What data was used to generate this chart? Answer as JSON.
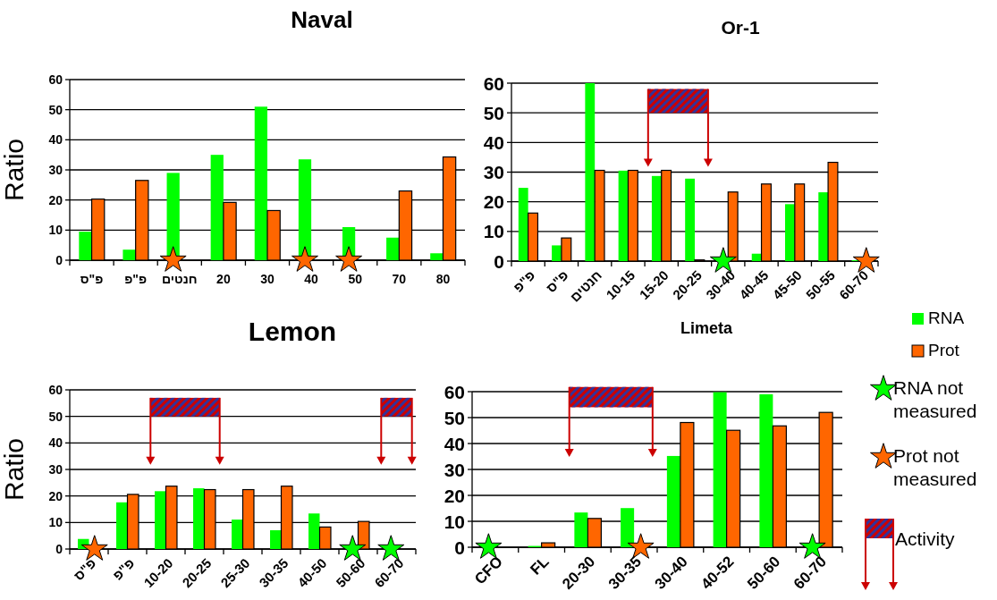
{
  "chart_data": [
    {
      "type": "bar",
      "title": "Naval",
      "ylabel": "Ratio",
      "categories": [
        "פ\"ס",
        "פ\"פ",
        "חנטים",
        "20",
        "30",
        "40",
        "50",
        "70",
        "80"
      ],
      "ylim": [
        0,
        60
      ],
      "yticks": [
        0,
        10,
        20,
        30,
        40,
        50,
        60
      ],
      "grid": "y",
      "series": [
        {
          "color": "#00ff00",
          "values": [
            9.5,
            3.5,
            29,
            35,
            51,
            33.5,
            11,
            7.5,
            2.3
          ]
        },
        {
          "color": "#ff6600",
          "values": [
            20.3,
            26.5,
            null,
            19.2,
            16.5,
            null,
            null,
            23,
            34.3
          ]
        },
        {
          "type": "scatter",
          "marker": "star",
          "color": "#ff6600",
          "x": [
            "חנטים",
            "40",
            "50"
          ],
          "values": [
            0,
            0,
            0
          ]
        }
      ]
    },
    {
      "type": "bar",
      "title": "Or-1",
      "categories": [
        "פ\"פ",
        "פ\"ס",
        "חנטים",
        "10-15",
        "15-20",
        "20-25",
        "30-40",
        "40-45",
        "45-50",
        "50-55",
        "60-70"
      ],
      "ylim": [
        0,
        60
      ],
      "yticks": [
        0,
        10,
        20,
        30,
        40,
        50,
        60
      ],
      "grid": "y",
      "series": [
        {
          "color": "#00ff00",
          "values": [
            24.7,
            5.3,
            60,
            30.5,
            28.7,
            27.8,
            null,
            2.5,
            19.2,
            23.2,
            0.3
          ]
        },
        {
          "color": "#ff6600",
          "values": [
            16.2,
            7.8,
            30.6,
            30.6,
            30.6,
            0.4,
            23.3,
            26,
            26,
            33.3,
            null
          ]
        },
        {
          "type": "scatter",
          "marker": "star",
          "color": "#00ff00",
          "x": [
            "30-40"
          ],
          "values": [
            0
          ]
        },
        {
          "type": "scatter",
          "marker": "star",
          "color": "#ff6600",
          "x": [
            "60-70"
          ],
          "values": [
            0
          ]
        }
      ],
      "bands": [
        {
          "axis": "x",
          "from": "15-20",
          "to": "20-25",
          "color": "#cc0000"
        }
      ]
    },
    {
      "type": "bar",
      "title": "Lemon",
      "ylabel": "Ratio",
      "categories": [
        "פ\"ס",
        "פ\"פ",
        "10-20",
        "20-25",
        "25-30",
        "30-35",
        "40-50",
        "50-60",
        "60-70"
      ],
      "ylim": [
        0,
        60
      ],
      "yticks": [
        0,
        10,
        20,
        30,
        40,
        50,
        60
      ],
      "grid": "y",
      "series": [
        {
          "color": "#00ff00",
          "values": [
            3.8,
            17.6,
            21.8,
            22.9,
            11.1,
            7.1,
            13.4,
            null,
            null
          ]
        },
        {
          "color": "#ff6600",
          "values": [
            null,
            20.6,
            23.7,
            22.4,
            22.4,
            23.7,
            8.3,
            10.4,
            null
          ]
        },
        {
          "type": "scatter",
          "marker": "star",
          "color": "#00ff00",
          "x": [
            "50-60",
            "60-70"
          ],
          "values": [
            0,
            0
          ]
        },
        {
          "type": "scatter",
          "marker": "star",
          "color": "#ff6600",
          "x": [
            "פ\"ס"
          ],
          "values": [
            0
          ]
        }
      ],
      "bands": [
        {
          "axis": "x",
          "from": "10-20",
          "to": "20-25",
          "color": "#cc0000"
        },
        {
          "axis": "x",
          "from": "60-70",
          "to": "60-70",
          "color": "#cc0000"
        }
      ]
    },
    {
      "type": "bar",
      "title": "Limeta",
      "categories": [
        "CFO",
        "FL",
        "20-30",
        "30-35",
        "30-40",
        "40-52",
        "50-60",
        "60-70"
      ],
      "ylim": [
        0,
        60
      ],
      "yticks": [
        0,
        10,
        20,
        30,
        40,
        50,
        60
      ],
      "grid": "y",
      "legend": "right",
      "series": [
        {
          "name": "RNA",
          "color": "#00ff00",
          "values": [
            null,
            0.5,
            13.4,
            15.1,
            35.2,
            59.8,
            59,
            null
          ]
        },
        {
          "name": "Prot",
          "color": "#ff6600",
          "values": [
            null,
            1.7,
            11.1,
            null,
            48.1,
            45.1,
            46.8,
            52
          ]
        },
        {
          "type": "scatter",
          "name": "RNA not measured",
          "marker": "star",
          "color": "#00ff00",
          "x": [
            "CFO",
            "60-70"
          ],
          "values": [
            0,
            0
          ]
        },
        {
          "type": "scatter",
          "name": "Prot not measured",
          "marker": "star",
          "color": "#ff6600",
          "x": [
            "30-35"
          ],
          "values": [
            0
          ]
        }
      ],
      "bands": [
        {
          "axis": "x",
          "from": "20-30",
          "to": "30-35",
          "color": "#cc0000",
          "label": "Activity"
        }
      ]
    }
  ]
}
